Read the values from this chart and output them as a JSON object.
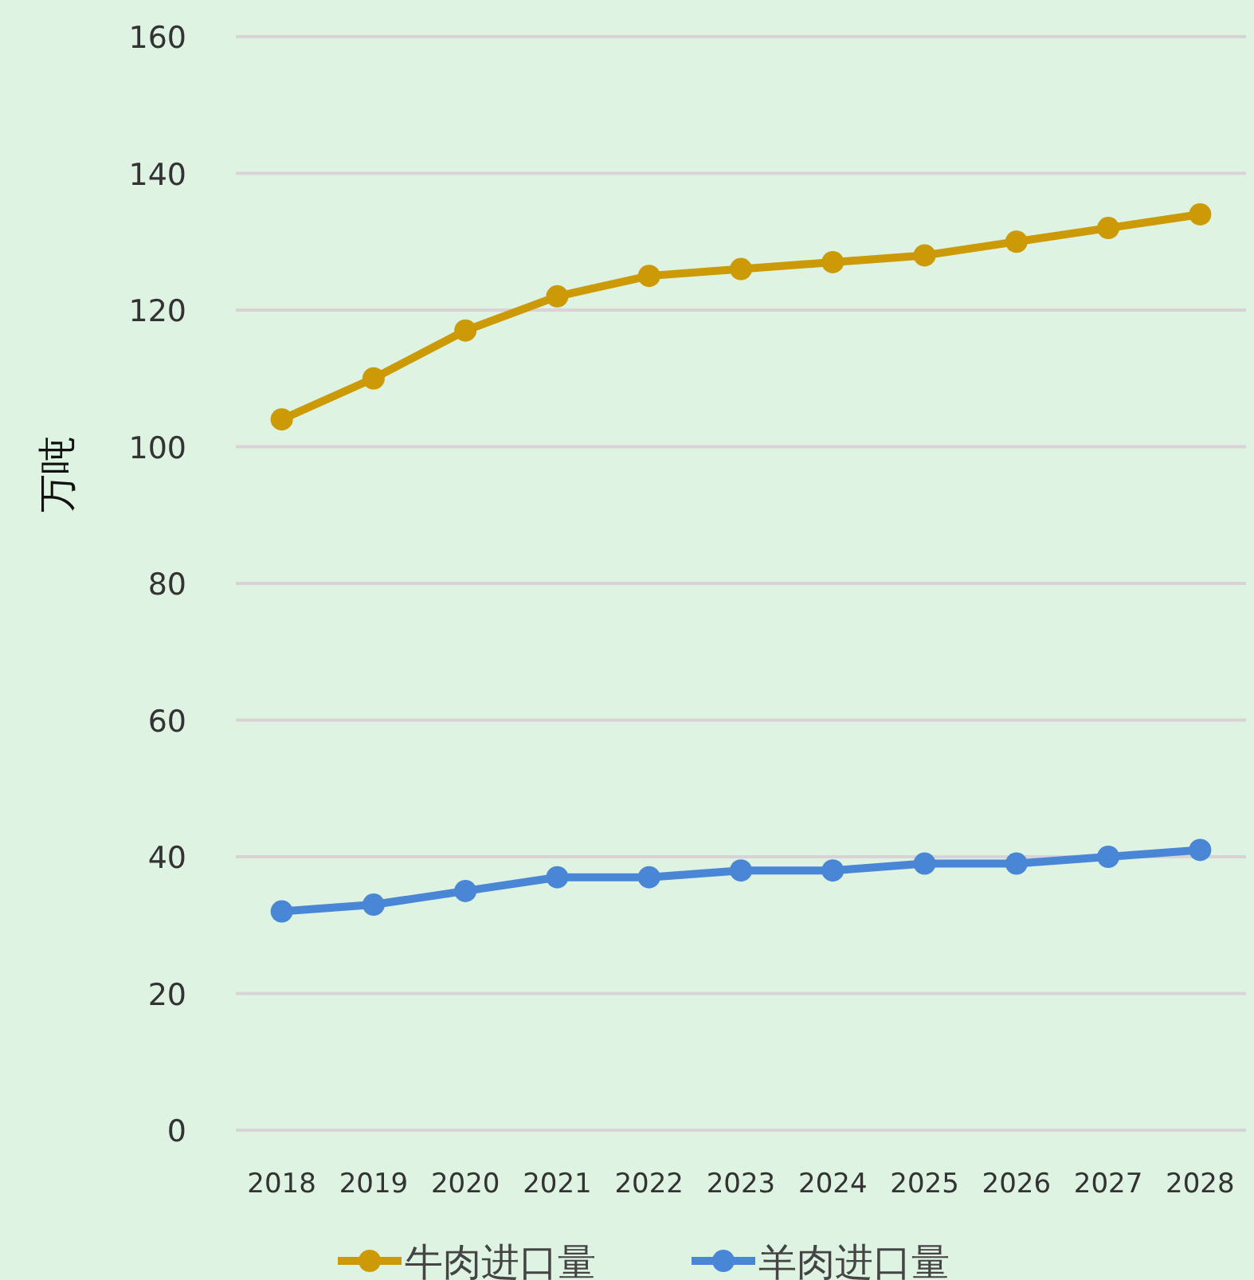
{
  "chart_data": {
    "type": "line",
    "ylabel": "万吨",
    "categories": [
      "2018",
      "2019",
      "2020",
      "2021",
      "2022",
      "2023",
      "2024",
      "2025",
      "2026",
      "2027",
      "2028"
    ],
    "series": [
      {
        "name": "牛肉进口量",
        "color": "#cc9a06",
        "values": [
          104,
          110,
          117,
          122,
          125,
          126,
          127,
          128,
          130,
          132,
          134
        ]
      },
      {
        "name": "羊肉进口量",
        "color": "#4a86d6",
        "values": [
          32,
          33,
          35,
          37,
          37,
          38,
          38,
          39,
          39,
          40,
          41
        ]
      }
    ],
    "ylim": [
      0,
      160
    ],
    "yticks": [
      0,
      20,
      40,
      60,
      80,
      100,
      120,
      140,
      160
    ],
    "grid": "y",
    "legend": "bottom",
    "marker": "circle",
    "line_style": "solid"
  }
}
